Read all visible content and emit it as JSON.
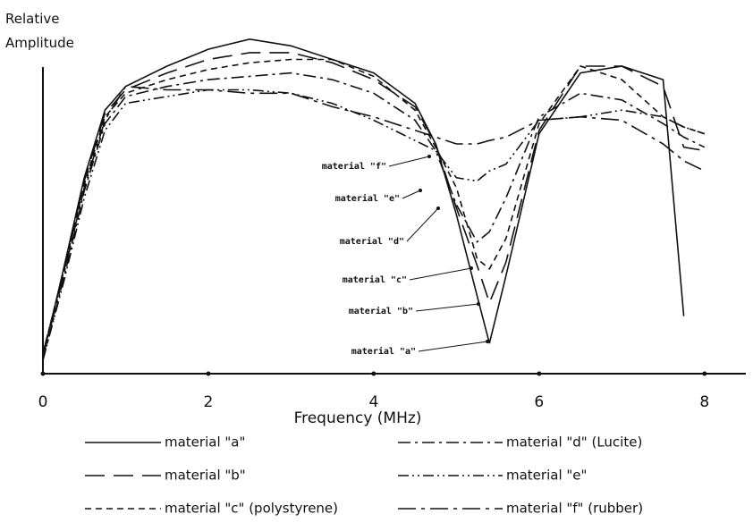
{
  "chart_data": {
    "type": "line",
    "ylabel": "Relative Amplitude",
    "xlabel": "Frequency (MHz)",
    "xlim": [
      0,
      8.5
    ],
    "ylim": [
      0,
      100
    ],
    "xticks": [
      0,
      2,
      4,
      6,
      8
    ],
    "color": "#111111",
    "x": [
      0,
      0.25,
      0.5,
      0.75,
      1,
      1.5,
      2,
      2.5,
      3,
      3.5,
      4,
      4.5,
      4.75,
      5,
      5.25,
      5.4,
      5.6,
      6,
      6.5,
      7,
      7.5,
      7.75,
      8
    ],
    "series": [
      {
        "name": "material \"a\"",
        "style": "solid",
        "values": [
          5,
          31,
          58,
          78,
          85,
          91,
          96,
          99,
          97,
          93,
          89,
          80,
          68,
          47,
          23,
          9,
          29,
          71,
          89,
          91,
          87,
          17,
          null
        ]
      },
      {
        "name": "material \"b\"",
        "style": "long-dash",
        "values": [
          6,
          30,
          57,
          77,
          84,
          89,
          93,
          95,
          95,
          92,
          87,
          79,
          68,
          49,
          32,
          21,
          33,
          72,
          91,
          91,
          85,
          67,
          66
        ]
      },
      {
        "name": "material \"c\" (polystyrene)",
        "style": "dashed",
        "values": [
          6,
          30,
          56,
          76,
          83,
          87,
          90,
          92,
          93,
          93,
          88,
          78,
          67,
          55,
          34,
          31,
          40,
          74,
          91,
          87,
          76,
          73,
          71
        ]
      },
      {
        "name": "material \"d\" (Lucite)",
        "style": "dash-dot",
        "values": [
          4,
          28,
          54,
          74,
          82,
          85,
          87,
          88,
          89,
          87,
          83,
          75,
          66,
          50,
          39,
          42,
          52,
          76,
          83,
          81,
          74,
          70,
          67
        ]
      },
      {
        "name": "material \"e\"",
        "style": "dash-dot-dot",
        "values": [
          4,
          27,
          52,
          72,
          80,
          82,
          84,
          84,
          83,
          80,
          75,
          69,
          66,
          58,
          57,
          60,
          62,
          75,
          76,
          78,
          76,
          73,
          71
        ]
      },
      {
        "name": "material \"f\" (rubber)",
        "style": "long-dash-dot",
        "values": [
          5,
          29,
          55,
          75,
          85,
          84,
          84,
          83,
          83,
          79,
          76,
          72,
          70,
          68,
          68,
          69,
          70,
          75,
          76,
          75,
          68,
          63,
          60
        ]
      }
    ],
    "annotations": [
      "material \"f\"",
      "material \"e\"",
      "material \"d\"",
      "material \"c\"",
      "material \"b\"",
      "material \"a\""
    ]
  }
}
